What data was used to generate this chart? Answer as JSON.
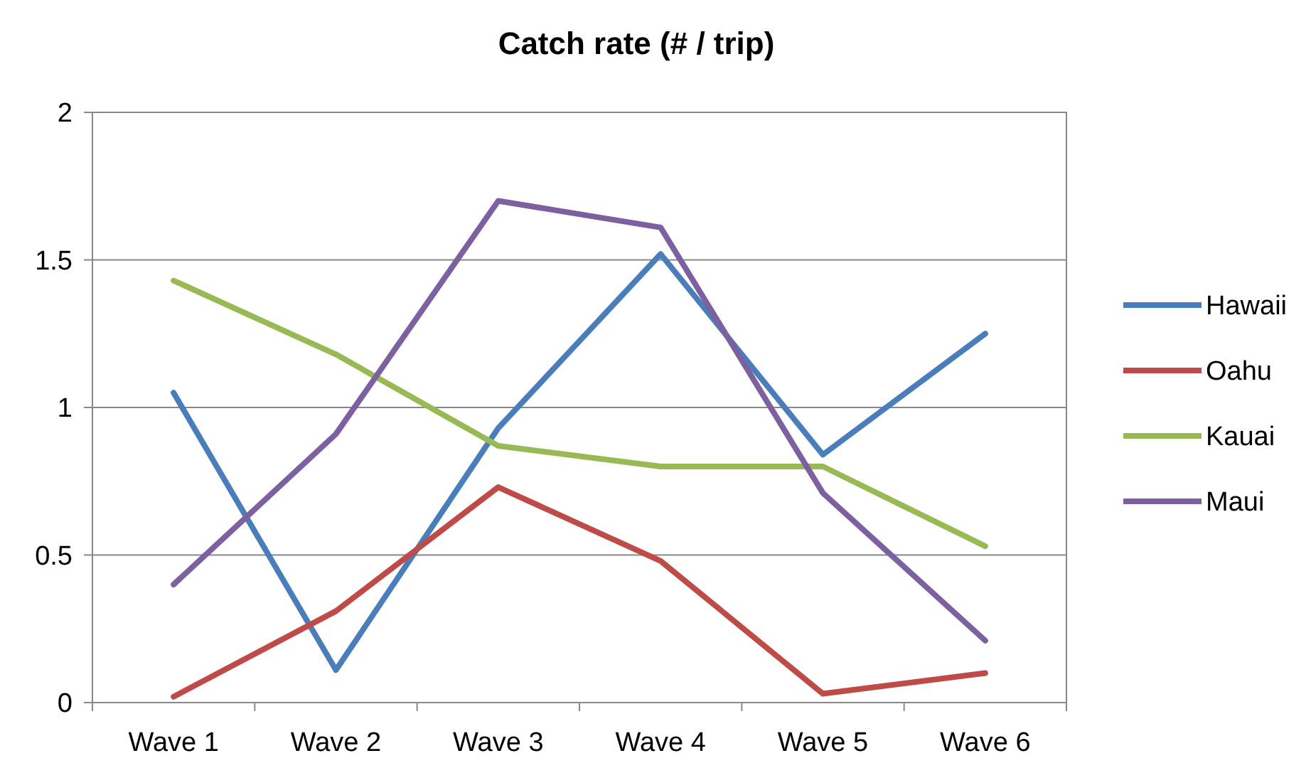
{
  "chart_data": {
    "type": "line",
    "title": "Catch rate (# / trip)",
    "categories": [
      "Wave 1",
      "Wave 2",
      "Wave 3",
      "Wave 4",
      "Wave 5",
      "Wave 6"
    ],
    "series": [
      {
        "name": "Hawaii",
        "color": "#4a7ebb",
        "values": [
          1.05,
          0.11,
          0.93,
          1.52,
          0.84,
          1.25
        ]
      },
      {
        "name": "Oahu",
        "color": "#be4b48",
        "values": [
          0.02,
          0.31,
          0.73,
          0.48,
          0.03,
          0.1
        ]
      },
      {
        "name": "Kauai",
        "color": "#98b954",
        "values": [
          1.43,
          1.18,
          0.87,
          0.8,
          0.8,
          0.53
        ]
      },
      {
        "name": "Maui",
        "color": "#7d60a0",
        "values": [
          0.4,
          0.91,
          1.7,
          1.61,
          0.71,
          0.21
        ]
      }
    ],
    "ylim": [
      0,
      2
    ],
    "yticks": [
      0,
      0.5,
      1,
      1.5,
      2
    ],
    "grid": "y",
    "legend": "right",
    "marker": "none",
    "line_style": "solid"
  }
}
